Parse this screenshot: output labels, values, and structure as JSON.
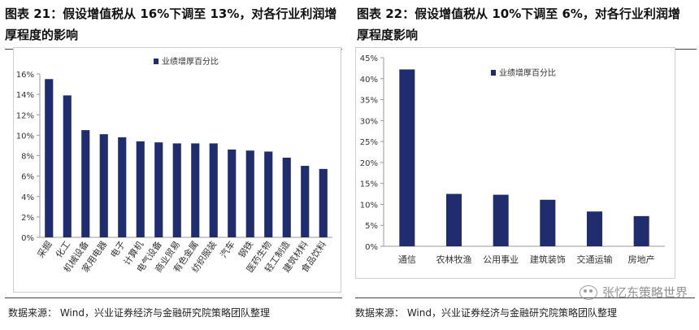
{
  "left": {
    "title": "图表 21：假设增值税从 16%下调至 13%，对各行业利润增厚程度的影响",
    "source": "数据来源：  Wind，兴业证券经济与金融研究院策略团队整理"
  },
  "right": {
    "title": "图表 22：假设增值税从 10%下调至 6%，对各行业利润增厚程度影响",
    "source": "数据来源：  Wind，兴业证券经济与金融研究院策略团队整理"
  },
  "watermark": {
    "text": "张忆东策略世界"
  },
  "colors": {
    "bar": "#1f2d6e",
    "axis": "#999999",
    "text": "#333333"
  },
  "chart_data": [
    {
      "type": "bar",
      "categories": [
        "采掘",
        "化工",
        "机械设备",
        "家用电器",
        "电子",
        "计算机",
        "电气设备",
        "商业贸易",
        "有色金属",
        "纺织服装",
        "汽车",
        "钢铁",
        "医药生物",
        "轻工制造",
        "建筑材料",
        "食品饮料"
      ],
      "series": [
        {
          "name": "业绩增厚百分比",
          "values": [
            15.5,
            13.9,
            10.5,
            10.1,
            9.8,
            9.4,
            9.3,
            9.2,
            9.2,
            9.2,
            8.6,
            8.5,
            8.4,
            7.8,
            7.0,
            6.7
          ]
        }
      ],
      "yticks": [
        "0%",
        "2%",
        "4%",
        "6%",
        "8%",
        "10%",
        "12%",
        "14%",
        "16%"
      ],
      "ylim": [
        0,
        16
      ],
      "legend": "top-left",
      "grid": false
    },
    {
      "type": "bar",
      "categories": [
        "通信",
        "农林牧渔",
        "公用事业",
        "建筑装饰",
        "交通运输",
        "房地产"
      ],
      "series": [
        {
          "name": "业绩增厚百分比",
          "values": [
            42.2,
            12.5,
            12.3,
            11.1,
            8.3,
            7.2
          ]
        }
      ],
      "yticks": [
        "0%",
        "5%",
        "10%",
        "15%",
        "20%",
        "25%",
        "30%",
        "35%",
        "40%",
        "45%"
      ],
      "ylim": [
        0,
        45
      ],
      "legend": "top-center",
      "grid": false
    }
  ]
}
